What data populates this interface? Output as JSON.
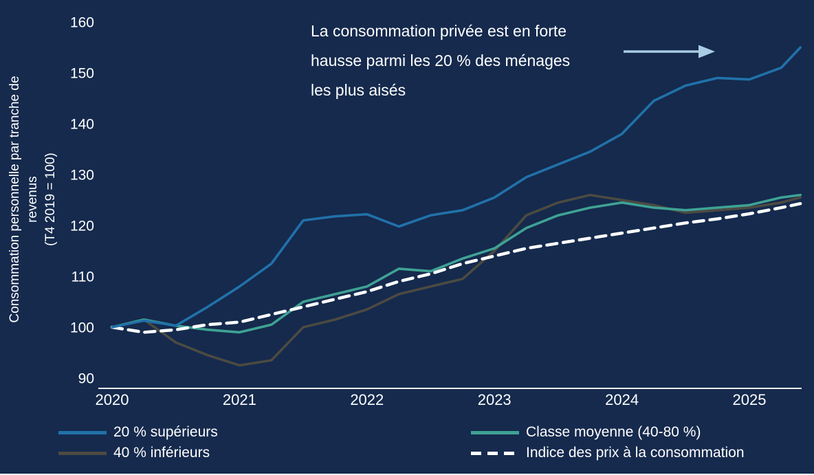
{
  "colors": {
    "background": "#152a4d",
    "text": "#ffffff",
    "axis": "#ffffff",
    "arrow": "#a9cde4",
    "top20": "#2171a9",
    "middle": "#3fa294",
    "bottom40": "#4c4a41",
    "cpi": "#ffffff"
  },
  "annotation": {
    "text": "La consommation privée est en forte hausse parmi les 20 % des ménages les plus aisés",
    "lines": [
      "La consommation privée est en forte",
      "hausse parmi les 20 % des ménages",
      "les plus aisés"
    ]
  },
  "y_axis": {
    "label": "Consommation personnelle par tranche de revenus",
    "sublabel": "(T4 2019 = 100)",
    "lines": [
      "Consommation personnelle par tranche de",
      "revenus",
      "(T4 2019 = 100)"
    ]
  },
  "legend": {
    "items": [
      {
        "label": "20 % supérieurs",
        "key": "top20",
        "style": "solid"
      },
      {
        "label": "40 % inférieurs",
        "key": "bottom40",
        "style": "solid"
      },
      {
        "label": "Classe moyenne (40-80 %)",
        "key": "middle",
        "style": "solid"
      },
      {
        "label": "Indice des prix à la consommation",
        "key": "cpi",
        "style": "dashed"
      }
    ]
  },
  "chart_data": {
    "type": "line",
    "title": "La consommation privée est en forte hausse parmi les 20 % des ménages les plus aisés",
    "xlabel": "",
    "ylabel": "Consommation personnelle par tranche de revenus (T4 2019 = 100)",
    "xlim": [
      2019.9,
      2025.5
    ],
    "ylim": [
      90,
      160
    ],
    "grid": false,
    "legend_position": "bottom",
    "xticks": [
      2020,
      2021,
      2022,
      2023,
      2024,
      2025
    ],
    "yticks": [
      90,
      100,
      110,
      120,
      130,
      140,
      150,
      160
    ],
    "x": [
      2020.0,
      2020.25,
      2020.5,
      2020.75,
      2021.0,
      2021.25,
      2021.5,
      2021.75,
      2022.0,
      2022.25,
      2022.5,
      2022.75,
      2023.0,
      2023.25,
      2023.5,
      2023.75,
      2024.0,
      2024.25,
      2024.5,
      2024.75,
      2025.0,
      2025.25,
      2025.4
    ],
    "series": [
      {
        "name": "20 % supérieurs",
        "key": "top20",
        "color": "#2171a9",
        "style": "solid",
        "values": [
          100,
          101.3,
          100.3,
          104,
          108,
          112.5,
          121,
          121.8,
          122.2,
          119.8,
          122,
          123,
          125.5,
          129.5,
          132,
          134.5,
          138,
          144.5,
          147.5,
          149,
          148.7,
          151,
          155
        ]
      },
      {
        "name": "Classe moyenne (40-80 %)",
        "key": "middle",
        "color": "#3fa294",
        "style": "solid",
        "values": [
          100,
          101.5,
          100.3,
          99.5,
          99,
          100.5,
          105,
          106.5,
          108,
          111.5,
          111,
          113.5,
          115.5,
          119.5,
          122,
          123.5,
          124.5,
          123.5,
          123,
          123.5,
          124,
          125.5,
          126
        ]
      },
      {
        "name": "40 % inférieurs",
        "key": "bottom40",
        "color": "#4c4a41",
        "style": "solid",
        "values": [
          100,
          101.5,
          97,
          94.5,
          92.5,
          93.5,
          100,
          101.5,
          103.5,
          106.5,
          108,
          109.5,
          115,
          122,
          124.5,
          126,
          125,
          124,
          122.5,
          123,
          123.5,
          124.5,
          125.5
        ]
      },
      {
        "name": "Indice des prix à la consommation",
        "key": "cpi",
        "color": "#ffffff",
        "style": "dashed",
        "values": [
          100,
          99,
          99.5,
          100.5,
          101,
          102.5,
          104,
          105.5,
          107,
          109,
          110.5,
          112.5,
          114,
          115.5,
          116.5,
          117.5,
          118.5,
          119.5,
          120.5,
          121.3,
          122.3,
          123.5,
          124.3
        ]
      }
    ]
  }
}
